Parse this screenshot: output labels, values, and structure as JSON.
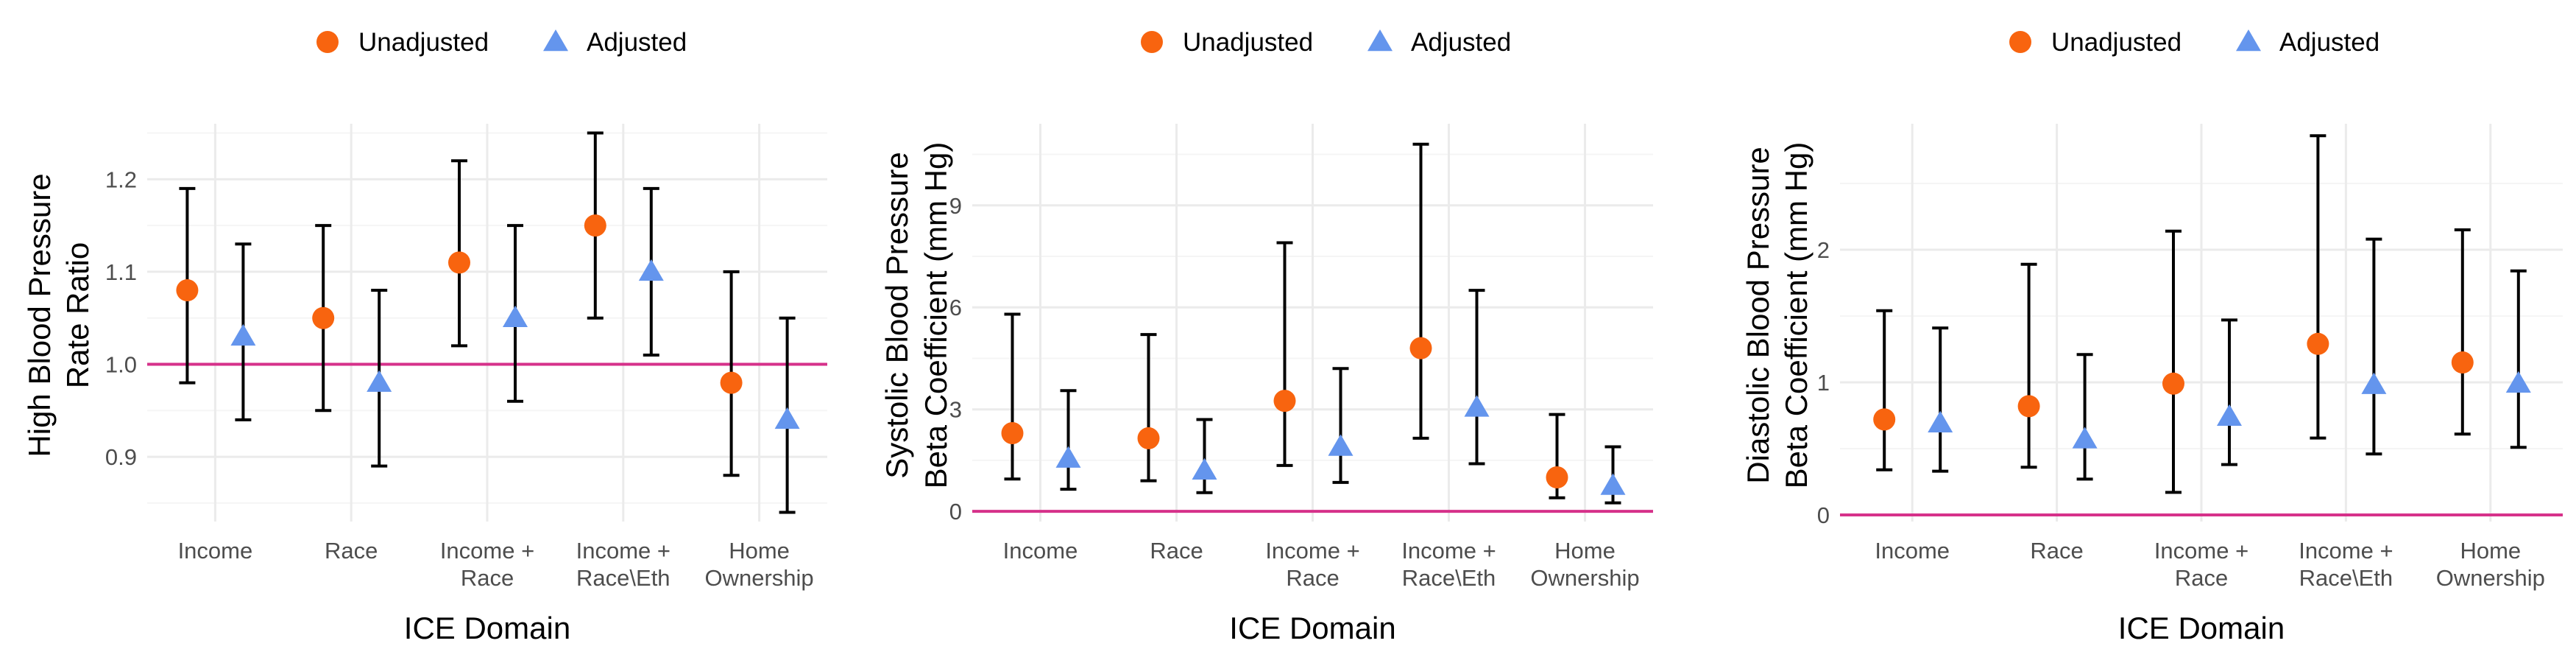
{
  "legend": {
    "unadjusted_label": "Unadjusted",
    "adjusted_label": "Adjusted"
  },
  "colors": {
    "unadjusted": "#F8640F",
    "adjusted": "#6495ED",
    "reference_line": "#D6318A",
    "grid_major": "#EBEBEB",
    "grid_minor": "#F5F5F5"
  },
  "chart_data": [
    {
      "type": "scatter",
      "xlabel": "ICE Domain",
      "ylabel": [
        "High Blood Pressure",
        "Rate Ratio"
      ],
      "categories": [
        [
          "Income"
        ],
        [
          "Race"
        ],
        [
          "Income +",
          "Race"
        ],
        [
          "Income +",
          "Race\\Eth"
        ],
        [
          "Home",
          "Ownership"
        ]
      ],
      "ylim": [
        0.83,
        1.26
      ],
      "yticks": [
        0.9,
        1.0,
        1.1,
        1.2
      ],
      "ytick_labels": [
        "0.9",
        "1.0",
        "1.1",
        "1.2"
      ],
      "reference_line": 1.0,
      "series": [
        {
          "name": "Unadjusted",
          "marker": "circle",
          "estimate": [
            1.08,
            1.05,
            1.11,
            1.15,
            0.98
          ],
          "lower": [
            0.98,
            0.95,
            1.02,
            1.05,
            0.88
          ],
          "upper": [
            1.19,
            1.15,
            1.22,
            1.25,
            1.1
          ]
        },
        {
          "name": "Adjusted",
          "marker": "triangle",
          "estimate": [
            1.03,
            0.98,
            1.05,
            1.1,
            0.94
          ],
          "lower": [
            0.94,
            0.89,
            0.96,
            1.01,
            0.84
          ],
          "upper": [
            1.13,
            1.08,
            1.15,
            1.19,
            1.05
          ]
        }
      ]
    },
    {
      "type": "scatter",
      "xlabel": "ICE Domain",
      "ylabel": [
        "Systolic Blood Pressure",
        "Beta Coefficient (mm Hg)"
      ],
      "categories": [
        [
          "Income"
        ],
        [
          "Race"
        ],
        [
          "Income +",
          "Race"
        ],
        [
          "Income +",
          "Race\\Eth"
        ],
        [
          "Home",
          "Ownership"
        ]
      ],
      "ylim": [
        -0.3,
        11.4
      ],
      "yticks": [
        0,
        3,
        6,
        9
      ],
      "ytick_labels": [
        "0",
        "3",
        "6",
        "9"
      ],
      "reference_line": 0,
      "series": [
        {
          "name": "Unadjusted",
          "marker": "circle",
          "estimate": [
            2.3,
            2.15,
            3.25,
            4.8,
            1.0
          ],
          "lower": [
            0.95,
            0.9,
            1.35,
            2.15,
            0.4
          ],
          "upper": [
            5.8,
            5.2,
            7.9,
            10.8,
            2.85
          ]
        },
        {
          "name": "Adjusted",
          "marker": "triangle",
          "estimate": [
            1.55,
            1.2,
            1.9,
            3.05,
            0.75
          ],
          "lower": [
            0.65,
            0.55,
            0.85,
            1.4,
            0.25
          ],
          "upper": [
            3.55,
            2.7,
            4.2,
            6.5,
            1.9
          ]
        }
      ]
    },
    {
      "type": "scatter",
      "xlabel": "ICE Domain",
      "ylabel": [
        "Diastolic Blood Pressure",
        "Beta Coefficient (mm Hg)"
      ],
      "categories": [
        [
          "Income"
        ],
        [
          "Race"
        ],
        [
          "Income +",
          "Race"
        ],
        [
          "Income +",
          "Race\\Eth"
        ],
        [
          "Home",
          "Ownership"
        ]
      ],
      "ylim": [
        -0.05,
        2.95
      ],
      "yticks": [
        0,
        1,
        2
      ],
      "ytick_labels": [
        "0",
        "1",
        "2"
      ],
      "reference_line": 0,
      "series": [
        {
          "name": "Unadjusted",
          "marker": "circle",
          "estimate": [
            0.72,
            0.82,
            0.99,
            1.29,
            1.15
          ],
          "lower": [
            0.34,
            0.36,
            0.17,
            0.58,
            0.61
          ],
          "upper": [
            1.54,
            1.89,
            2.14,
            2.86,
            2.15
          ]
        },
        {
          "name": "Adjusted",
          "marker": "triangle",
          "estimate": [
            0.69,
            0.57,
            0.74,
            0.98,
            0.99
          ],
          "lower": [
            0.33,
            0.27,
            0.38,
            0.46,
            0.51
          ],
          "upper": [
            1.41,
            1.21,
            1.47,
            2.08,
            1.84
          ]
        }
      ]
    }
  ]
}
